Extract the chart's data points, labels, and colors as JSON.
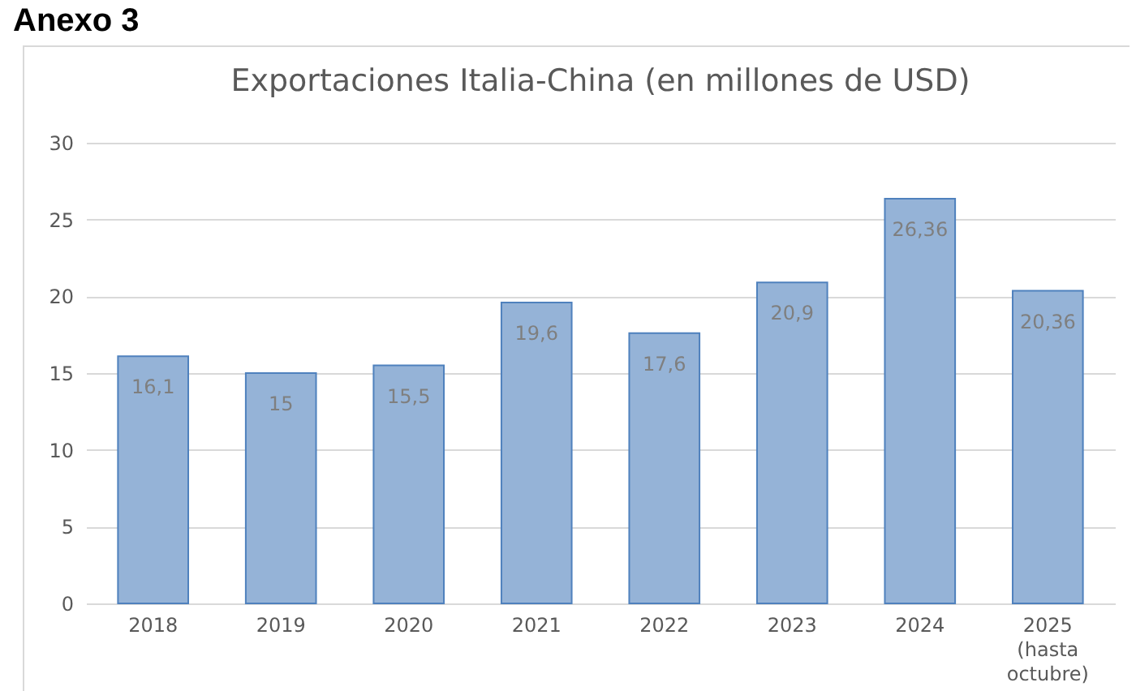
{
  "chart_data": {
    "type": "bar",
    "title": "Exportaciones Italia-China (en millones de USD)",
    "annotations": [
      "Anexo 3"
    ],
    "categories": [
      "2018",
      "2019",
      "2020",
      "2021",
      "2022",
      "2023",
      "2024",
      "2025 (hasta octubre)"
    ],
    "values": [
      16.1,
      15,
      15.5,
      19.6,
      17.6,
      20.9,
      26.36,
      20.36
    ],
    "value_labels": [
      "16,1",
      "15",
      "15,5",
      "19,6",
      "17,6",
      "20,9",
      "26,36",
      "20,36"
    ],
    "color": "#95b3d7",
    "ylim": [
      0,
      30
    ],
    "yticks": [
      0,
      5,
      10,
      15,
      20,
      25,
      30
    ],
    "grid": "y"
  }
}
